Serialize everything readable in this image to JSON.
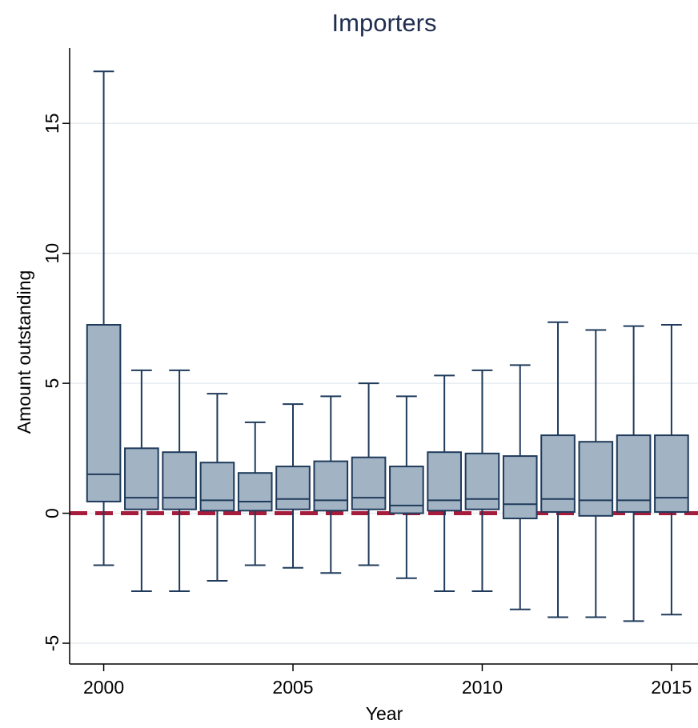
{
  "chart_data": {
    "type": "box",
    "title": "Importers",
    "xlabel": "Year",
    "ylabel": "Amount outstanding",
    "xlim": [
      1999.1,
      2015.7
    ],
    "ylim": [
      -5.8,
      17.9
    ],
    "x_ticks": [
      2000,
      2005,
      2010,
      2015
    ],
    "y_ticks": [
      -5,
      0,
      5,
      10,
      15
    ],
    "grid": true,
    "reference_line": {
      "y": 0,
      "style": "dashed",
      "color": "#a51c3c"
    },
    "colors": {
      "box_fill": "#a2b3c4",
      "box_stroke": "#1f3a5a",
      "grid": "#e6ecf0",
      "title": "#1f2d4f"
    },
    "boxes": [
      {
        "x": 2000,
        "whisker_low": -2.0,
        "q1": 0.45,
        "median": 1.5,
        "q3": 7.25,
        "whisker_high": 17.0
      },
      {
        "x": 2001,
        "whisker_low": -3.0,
        "q1": 0.15,
        "median": 0.6,
        "q3": 2.5,
        "whisker_high": 5.5
      },
      {
        "x": 2002,
        "whisker_low": -3.0,
        "q1": 0.15,
        "median": 0.6,
        "q3": 2.35,
        "whisker_high": 5.5
      },
      {
        "x": 2003,
        "whisker_low": -2.6,
        "q1": 0.1,
        "median": 0.5,
        "q3": 1.95,
        "whisker_high": 4.6
      },
      {
        "x": 2004,
        "whisker_low": -2.0,
        "q1": 0.1,
        "median": 0.45,
        "q3": 1.55,
        "whisker_high": 3.5
      },
      {
        "x": 2005,
        "whisker_low": -2.1,
        "q1": 0.15,
        "median": 0.55,
        "q3": 1.8,
        "whisker_high": 4.2
      },
      {
        "x": 2006,
        "whisker_low": -2.3,
        "q1": 0.1,
        "median": 0.5,
        "q3": 2.0,
        "whisker_high": 4.5
      },
      {
        "x": 2007,
        "whisker_low": -2.0,
        "q1": 0.15,
        "median": 0.6,
        "q3": 2.15,
        "whisker_high": 5.0
      },
      {
        "x": 2008,
        "whisker_low": -2.5,
        "q1": 0.0,
        "median": 0.3,
        "q3": 1.8,
        "whisker_high": 4.5
      },
      {
        "x": 2009,
        "whisker_low": -3.0,
        "q1": 0.1,
        "median": 0.5,
        "q3": 2.35,
        "whisker_high": 5.3
      },
      {
        "x": 2010,
        "whisker_low": -3.0,
        "q1": 0.15,
        "median": 0.55,
        "q3": 2.3,
        "whisker_high": 5.5
      },
      {
        "x": 2011,
        "whisker_low": -3.7,
        "q1": -0.2,
        "median": 0.35,
        "q3": 2.2,
        "whisker_high": 5.7
      },
      {
        "x": 2012,
        "whisker_low": -4.0,
        "q1": 0.05,
        "median": 0.55,
        "q3": 3.0,
        "whisker_high": 7.35
      },
      {
        "x": 2013,
        "whisker_low": -4.0,
        "q1": -0.1,
        "median": 0.5,
        "q3": 2.75,
        "whisker_high": 7.05
      },
      {
        "x": 2014,
        "whisker_low": -4.15,
        "q1": 0.05,
        "median": 0.5,
        "q3": 3.0,
        "whisker_high": 7.2
      },
      {
        "x": 2015,
        "whisker_low": -3.9,
        "q1": 0.05,
        "median": 0.6,
        "q3": 3.0,
        "whisker_high": 7.25
      }
    ]
  }
}
